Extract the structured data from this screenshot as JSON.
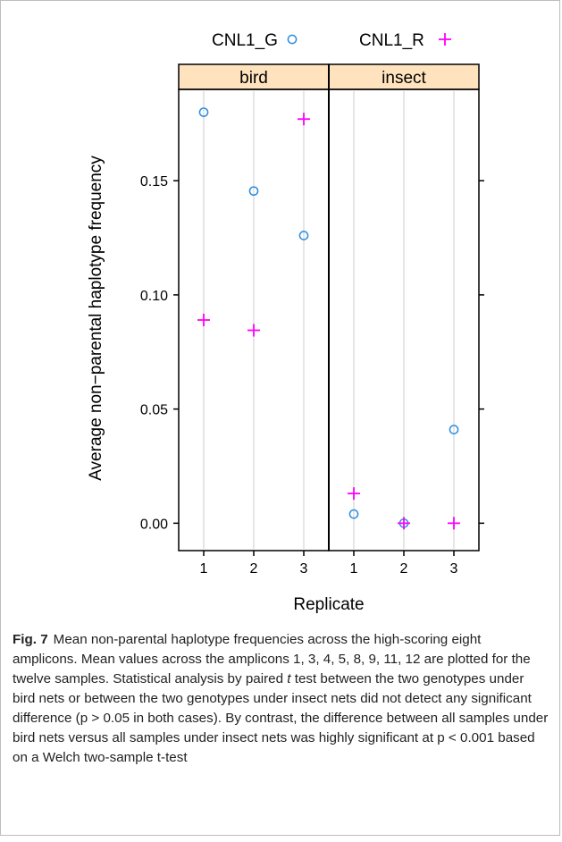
{
  "chart_data": {
    "type": "scatter",
    "panels": [
      {
        "name": "bird",
        "x": [
          1,
          2,
          3
        ],
        "series": [
          {
            "name": "CNL1_G",
            "values": [
              0.18,
              0.1455,
              0.126
            ]
          },
          {
            "name": "CNL1_R",
            "values": [
              0.089,
              0.0845,
              0.177
            ]
          }
        ]
      },
      {
        "name": "insect",
        "x": [
          1,
          2,
          3
        ],
        "series": [
          {
            "name": "CNL1_G",
            "values": [
              0.004,
              0.0,
              0.041
            ]
          },
          {
            "name": "CNL1_R",
            "values": [
              0.013,
              0.0,
              0.0
            ]
          }
        ]
      }
    ],
    "xlabel": "Replicate",
    "ylabel": "Average non−parental haplotype frequency",
    "x_ticks": [
      "1",
      "2",
      "3"
    ],
    "y_ticks": [
      "0.00",
      "0.05",
      "0.10",
      "0.15"
    ],
    "ylim": [
      -0.012,
      0.19
    ],
    "legend": {
      "position": "top",
      "entries": [
        {
          "name": "CNL1_G",
          "marker": "circle",
          "color": "#2b8ce0"
        },
        {
          "name": "CNL1_R",
          "marker": "plus",
          "color": "#ff00ff"
        }
      ]
    },
    "strip_color": "#ffe3be",
    "grid_color": "#e6e6e6"
  },
  "caption": {
    "label": "Fig. 7",
    "text_1": "Mean non-parental haplotype frequencies across the high-scoring eight amplicons. Mean values across the amplicons 1, 3, 4, 5, 8, 9, 11, 12 are plotted for the twelve samples. Statistical analysis by paired ",
    "italic_t": "t",
    "text_2": " test between the two genotypes under bird nets or between the two genotypes under insect nets did not detect any significant difference (p > 0.05 in both cases). By contrast, the difference between all samples under bird nets versus all samples under insect nets was highly significant at p < 0.001 based on a Welch two-sample t-test"
  }
}
